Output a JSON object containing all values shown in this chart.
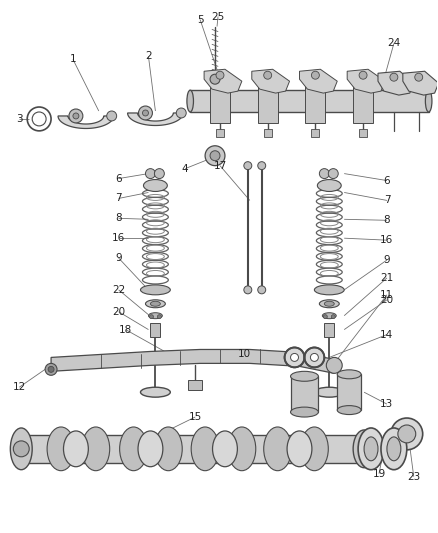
{
  "background_color": "#ffffff",
  "fig_width": 4.38,
  "fig_height": 5.33,
  "dpi": 100,
  "line_color": "#4a4a4a",
  "label_fontsize": 7.5,
  "label_color": "#222222",
  "parts_color": "#d8d8d8",
  "parts_edge": "#3a3a3a",
  "spring_color": "#888888"
}
